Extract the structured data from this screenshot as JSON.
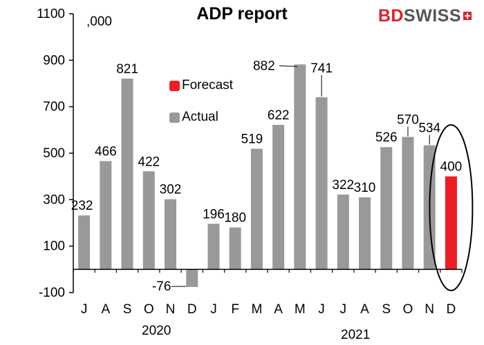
{
  "title": "ADP report",
  "brand": {
    "part1": "BD",
    "part2": "SWISS"
  },
  "unit_label": ",000",
  "legend": [
    {
      "label": "Forecast",
      "color": "#ee1c25"
    },
    {
      "label": "Actual",
      "color": "#999999"
    }
  ],
  "year_labels": [
    "2020",
    "2021"
  ],
  "chart_data": {
    "type": "bar",
    "title": "ADP report",
    "categories": [
      "J",
      "A",
      "S",
      "O",
      "N",
      "D",
      "J",
      "F",
      "M",
      "A",
      "M",
      "J",
      "J",
      "A",
      "S",
      "O",
      "N",
      "D"
    ],
    "series": [
      {
        "name": "Actual",
        "values": [
          232,
          466,
          821,
          422,
          302,
          -76,
          196,
          180,
          519,
          622,
          882,
          741,
          322,
          310,
          526,
          570,
          534,
          null
        ]
      },
      {
        "name": "Forecast",
        "values": [
          null,
          null,
          null,
          null,
          null,
          null,
          null,
          null,
          null,
          null,
          null,
          null,
          null,
          null,
          null,
          null,
          null,
          400
        ]
      }
    ],
    "data_labels": [
      "232",
      "466",
      "821",
      "422",
      "302",
      "-76",
      "196",
      "180",
      "519",
      "622",
      "882",
      "741",
      "322",
      "310",
      "526",
      "570",
      "534",
      "400"
    ],
    "y_ticks": [
      -100,
      100,
      300,
      500,
      700,
      900,
      1100
    ],
    "ylim": [
      -100,
      1100
    ],
    "colors": {
      "actual": "#999999",
      "forecast": "#ee1c25"
    },
    "annotation": "ellipse around December forecast"
  }
}
